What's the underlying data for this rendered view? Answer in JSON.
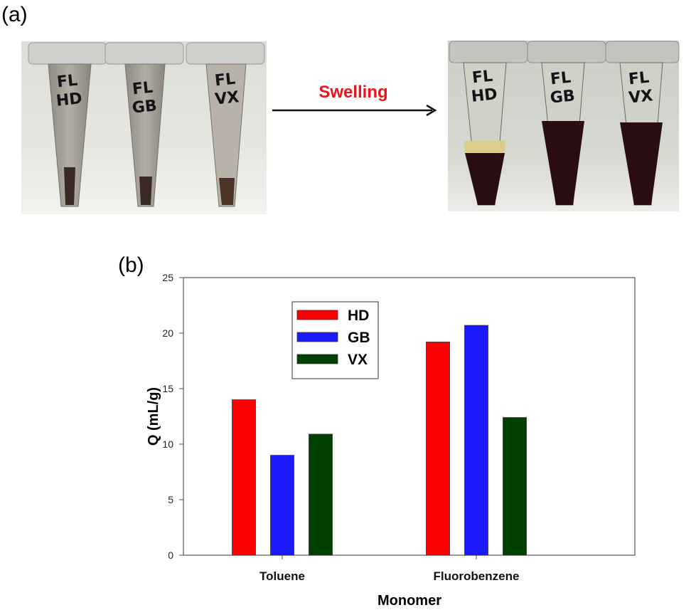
{
  "panel_a": {
    "label": "(a)",
    "arrow_label": "Swelling",
    "arrow_label_color": "#e8141e",
    "before_tubes": [
      {
        "handwritten_label": "FL HD"
      },
      {
        "handwritten_label": "FL GB"
      },
      {
        "handwritten_label": "FL VX"
      }
    ],
    "after_tubes": [
      {
        "handwritten_label": "FL HD"
      },
      {
        "handwritten_label": "FL GB"
      },
      {
        "handwritten_label": "FL VX"
      }
    ]
  },
  "panel_b": {
    "label": "(b)"
  },
  "chart_data": {
    "type": "bar",
    "title": "",
    "xlabel": "Monomer",
    "ylabel": "Q (mL/g)",
    "ylim": [
      0,
      25
    ],
    "yticks": [
      "0",
      "5",
      "10",
      "15",
      "20",
      "25"
    ],
    "categories": [
      "Toluene",
      "Fluorobenzene"
    ],
    "series": [
      {
        "name": "HD",
        "color": "#ff0000",
        "values": [
          14.0,
          19.2
        ]
      },
      {
        "name": "GB",
        "color": "#1a1aff",
        "values": [
          9.0,
          20.7
        ]
      },
      {
        "name": "VX",
        "color": "#004000",
        "values": [
          10.9,
          12.4
        ]
      }
    ],
    "legend_position": "top-left",
    "grid": false
  }
}
